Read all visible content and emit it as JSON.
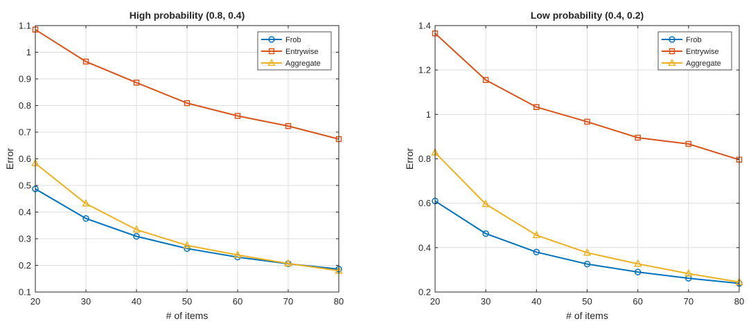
{
  "chart_data": [
    {
      "type": "line",
      "title": "High probability (0.8, 0.4)",
      "xlabel": "# of items",
      "ylabel": "Error",
      "x": [
        20,
        30,
        40,
        50,
        60,
        70,
        80
      ],
      "xlim": [
        20,
        80
      ],
      "ylim": [
        0.1,
        1.1
      ],
      "xticks": [
        20,
        30,
        40,
        50,
        60,
        70,
        80
      ],
      "yticks": [
        0.1,
        0.2,
        0.3,
        0.4,
        0.5,
        0.6,
        0.7,
        0.8,
        0.9,
        1,
        1.1
      ],
      "grid": true,
      "legend_position": "top-right",
      "series": [
        {
          "name": "Frob",
          "marker": "circle",
          "color": "#0072BD",
          "values": [
            0.487,
            0.376,
            0.309,
            0.263,
            0.231,
            0.206,
            0.186
          ]
        },
        {
          "name": "Entrywise",
          "marker": "square",
          "color": "#D95319",
          "values": [
            1.085,
            0.965,
            0.886,
            0.809,
            0.761,
            0.723,
            0.674
          ]
        },
        {
          "name": "Aggregate",
          "marker": "triangle",
          "color": "#EDB120",
          "values": [
            0.583,
            0.432,
            0.334,
            0.275,
            0.239,
            0.207,
            0.18
          ]
        }
      ]
    },
    {
      "type": "line",
      "title": "Low probability (0.4, 0.2)",
      "xlabel": "# of items",
      "ylabel": "Error",
      "x": [
        20,
        30,
        40,
        50,
        60,
        70,
        80
      ],
      "xlim": [
        20,
        80
      ],
      "ylim": [
        0.2,
        1.4
      ],
      "xticks": [
        20,
        30,
        40,
        50,
        60,
        70,
        80
      ],
      "yticks": [
        0.2,
        0.4,
        0.6,
        0.8,
        1,
        1.2,
        1.4
      ],
      "grid": true,
      "legend_position": "top-right",
      "series": [
        {
          "name": "Frob",
          "marker": "circle",
          "color": "#0072BD",
          "values": [
            0.61,
            0.463,
            0.38,
            0.326,
            0.29,
            0.262,
            0.239
          ]
        },
        {
          "name": "Entrywise",
          "marker": "square",
          "color": "#D95319",
          "values": [
            1.365,
            1.155,
            1.033,
            0.967,
            0.895,
            0.867,
            0.796
          ]
        },
        {
          "name": "Aggregate",
          "marker": "triangle",
          "color": "#EDB120",
          "values": [
            0.828,
            0.596,
            0.456,
            0.377,
            0.327,
            0.283,
            0.245
          ]
        }
      ]
    }
  ]
}
